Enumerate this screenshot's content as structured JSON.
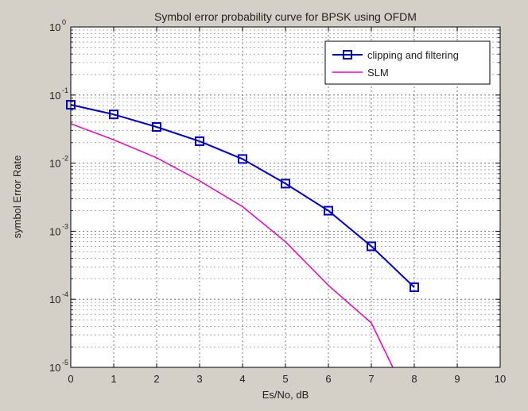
{
  "chart_data": {
    "type": "line",
    "title": "Symbol error probability curve for BPSK using OFDM",
    "xlabel": "Es/No, dB",
    "ylabel": "symbol Error Rate",
    "xlim": [
      0,
      10
    ],
    "ylim": [
      1e-05,
      1
    ],
    "yscale": "log",
    "grid": "major and minor",
    "legend_position": "top-right",
    "x_ticks": [
      {
        "value": 0,
        "label": "0"
      },
      {
        "value": 1,
        "label": "1"
      },
      {
        "value": 2,
        "label": "2"
      },
      {
        "value": 3,
        "label": "3"
      },
      {
        "value": 4,
        "label": "4"
      },
      {
        "value": 5,
        "label": "5"
      },
      {
        "value": 6,
        "label": "6"
      },
      {
        "value": 7,
        "label": "7"
      },
      {
        "value": 8,
        "label": "8"
      },
      {
        "value": 9,
        "label": "9"
      },
      {
        "value": 10,
        "label": "10"
      }
    ],
    "y_ticks": [
      {
        "value": 1,
        "base": "10",
        "exp": "0"
      },
      {
        "value": 0.1,
        "base": "10",
        "exp": "-1"
      },
      {
        "value": 0.01,
        "base": "10",
        "exp": "-2"
      },
      {
        "value": 0.001,
        "base": "10",
        "exp": "-3"
      },
      {
        "value": 0.0001,
        "base": "10",
        "exp": "-4"
      },
      {
        "value": 1e-05,
        "base": "10",
        "exp": "-5"
      }
    ],
    "series": [
      {
        "name": "clipping and filtering",
        "color": "#0000cc",
        "marker": "square",
        "x": [
          0,
          1,
          2,
          3,
          4,
          5,
          6,
          7,
          8
        ],
        "y": [
          0.072,
          0.052,
          0.034,
          0.021,
          0.0115,
          0.005,
          0.002,
          0.0006,
          0.00015
        ]
      },
      {
        "name": "SLM",
        "color": "#ee00cc",
        "marker": "none",
        "x": [
          0,
          1,
          2,
          3,
          4,
          5,
          6,
          7,
          7.5
        ],
        "y": [
          0.038,
          0.022,
          0.012,
          0.0055,
          0.0023,
          0.0007,
          0.00016,
          4.5e-05,
          1e-05
        ]
      }
    ]
  }
}
